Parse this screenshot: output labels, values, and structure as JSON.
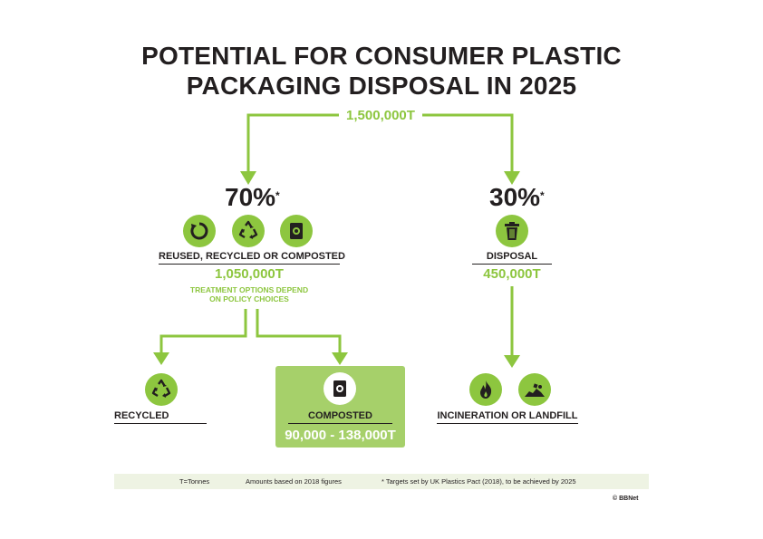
{
  "title": {
    "line1": "POTENTIAL FOR CONSUMER PLASTIC",
    "line2": "PACKAGING DISPOSAL IN 2025"
  },
  "total": "1,500,000T",
  "left_branch": {
    "percent": "70%",
    "asterisk": "*",
    "label": "REUSED, RECYCLED OR COMPOSTED",
    "amount": "1,050,000T",
    "note_line1": "TREATMENT OPTIONS DEPEND",
    "note_line2": "ON POLICY CHOICES",
    "icons": [
      "reuse-icon",
      "recycle-icon",
      "compost-bin-icon"
    ]
  },
  "right_branch": {
    "percent": "30%",
    "asterisk": "*",
    "label": "DISPOSAL",
    "amount": "450,000T",
    "icons": [
      "trash-bin-icon"
    ]
  },
  "recycled": {
    "label": "RECYCLED",
    "icons": [
      "recycle-icon"
    ]
  },
  "composted": {
    "label": "COMPOSTED",
    "amount": "90,000 - 138,000T",
    "icons": [
      "compost-bin-icon"
    ]
  },
  "incineration_landfill": {
    "label": "INCINERATION OR LANDFILL",
    "icons": [
      "fire-icon",
      "landfill-icon"
    ]
  },
  "footer": {
    "units": "T=Tonnes",
    "basis": "Amounts based on 2018 figures",
    "targets": "* Targets set by UK Plastics Pact (2018), to be achieved by 2025"
  },
  "copyright": "© BBNet",
  "colors": {
    "accent": "#8dc63f",
    "box": "#a6d06a",
    "text": "#231f20",
    "footer_bg": "#eef3e3"
  }
}
